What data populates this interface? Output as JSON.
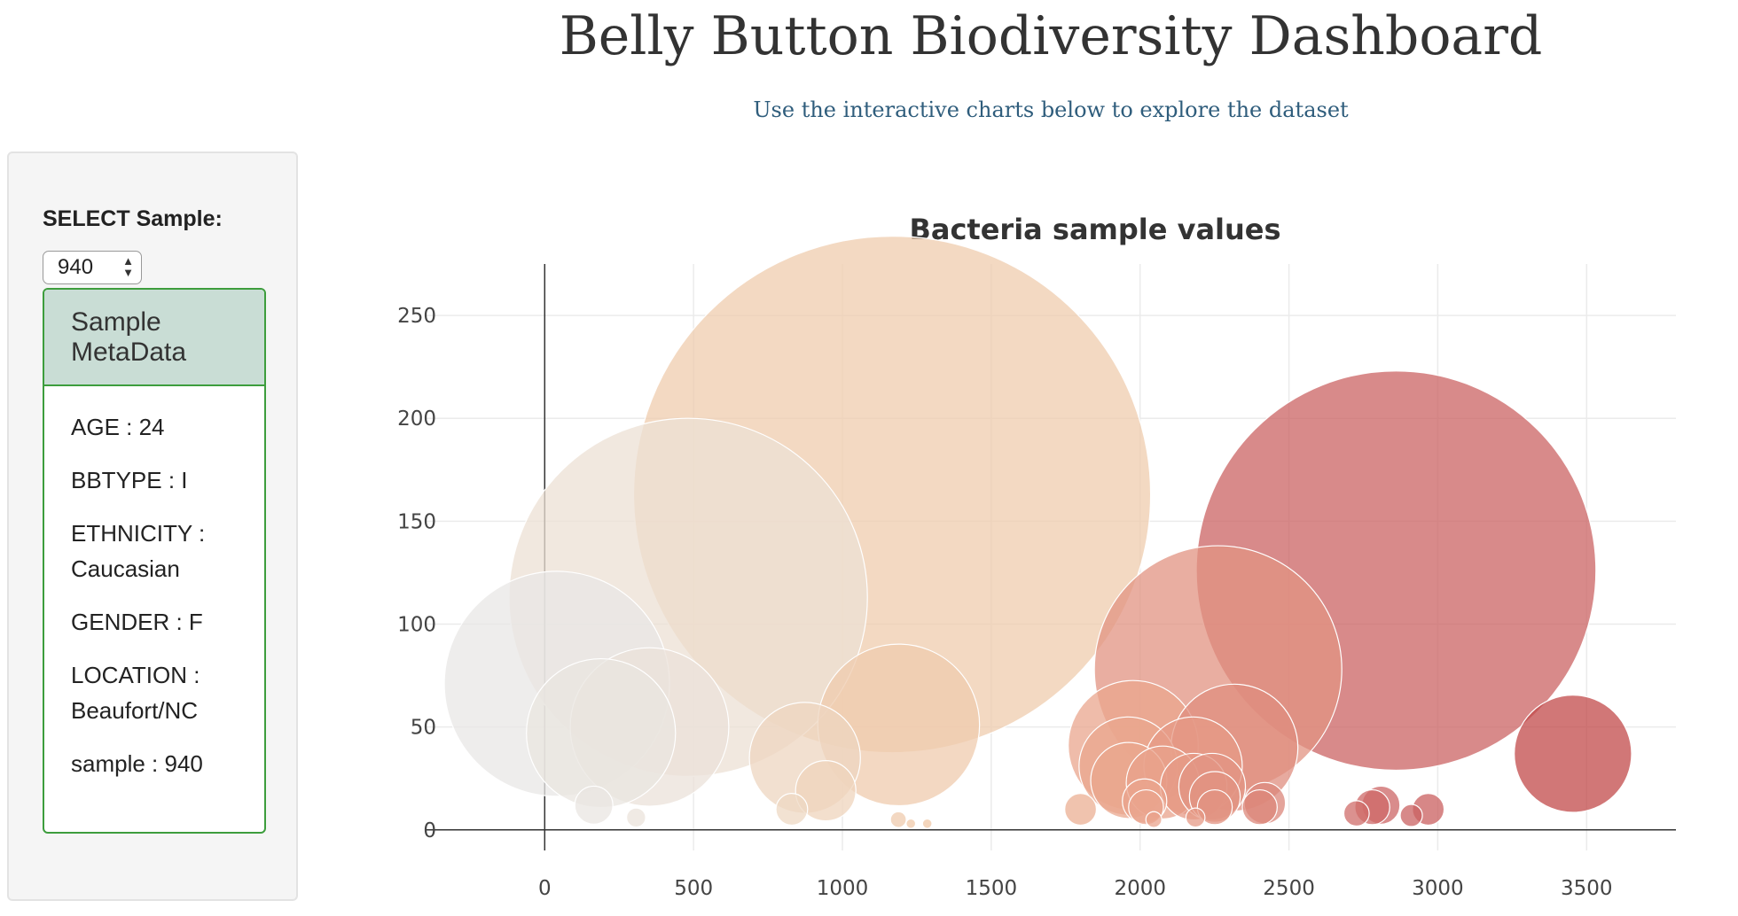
{
  "header": {
    "title": "Belly Button Biodiversity Dashboard",
    "subtitle": "Use the interactive charts below to explore the dataset"
  },
  "sidebar": {
    "select_label": "SELECT Sample:",
    "selected_sample": "940",
    "panel_title": "Sample MetaData",
    "metadata": [
      "AGE : 24",
      "BBTYPE : I",
      "ETHNICITY : Caucasian",
      "GENDER : F",
      "LOCATION : Beaufort/NC",
      "sample : 940"
    ]
  },
  "chart_data": {
    "type": "scatter",
    "title": "Bacteria sample values",
    "xlabel": "",
    "ylabel": "",
    "xlim": [
      -400,
      3800
    ],
    "ylim": [
      -10,
      275
    ],
    "xticks": [
      0,
      500,
      1000,
      1500,
      2000,
      2500,
      3000,
      3500
    ],
    "yticks": [
      0,
      50,
      100,
      150,
      200,
      250
    ],
    "grid": true,
    "legend": "none",
    "marker_size_reflects": "y value",
    "colorscale": [
      "#e8e8e8",
      "#eedccb",
      "#f0c4a0",
      "#e8a08a",
      "#cc6666",
      "#c04848"
    ],
    "points": [
      {
        "x": 41,
        "y": 71
      },
      {
        "x": 189,
        "y": 47
      },
      {
        "x": 352,
        "y": 50
      },
      {
        "x": 165,
        "y": 12
      },
      {
        "x": 307,
        "y": 6
      },
      {
        "x": 482,
        "y": 113
      },
      {
        "x": 1167,
        "y": 163
      },
      {
        "x": 874,
        "y": 35
      },
      {
        "x": 944,
        "y": 19
      },
      {
        "x": 1189,
        "y": 51
      },
      {
        "x": 830,
        "y": 10
      },
      {
        "x": 1188,
        "y": 5
      },
      {
        "x": 1230,
        "y": 3
      },
      {
        "x": 1285,
        "y": 3
      },
      {
        "x": 1800,
        "y": 10
      },
      {
        "x": 1977,
        "y": 41
      },
      {
        "x": 1960,
        "y": 31
      },
      {
        "x": 1962,
        "y": 24
      },
      {
        "x": 2015,
        "y": 14
      },
      {
        "x": 2020,
        "y": 11
      },
      {
        "x": 2046,
        "y": 5
      },
      {
        "x": 2076,
        "y": 23
      },
      {
        "x": 2178,
        "y": 31
      },
      {
        "x": 2180,
        "y": 21
      },
      {
        "x": 2186,
        "y": 6
      },
      {
        "x": 2242,
        "y": 21
      },
      {
        "x": 2251,
        "y": 16
      },
      {
        "x": 2251,
        "y": 11
      },
      {
        "x": 2262,
        "y": 78
      },
      {
        "x": 2317,
        "y": 40
      },
      {
        "x": 2402,
        "y": 11
      },
      {
        "x": 2419,
        "y": 13
      },
      {
        "x": 2727,
        "y": 8
      },
      {
        "x": 2780,
        "y": 11
      },
      {
        "x": 2809,
        "y": 12
      },
      {
        "x": 2860,
        "y": 126
      },
      {
        "x": 2911,
        "y": 7
      },
      {
        "x": 2968,
        "y": 10
      },
      {
        "x": 3454,
        "y": 37
      }
    ]
  }
}
